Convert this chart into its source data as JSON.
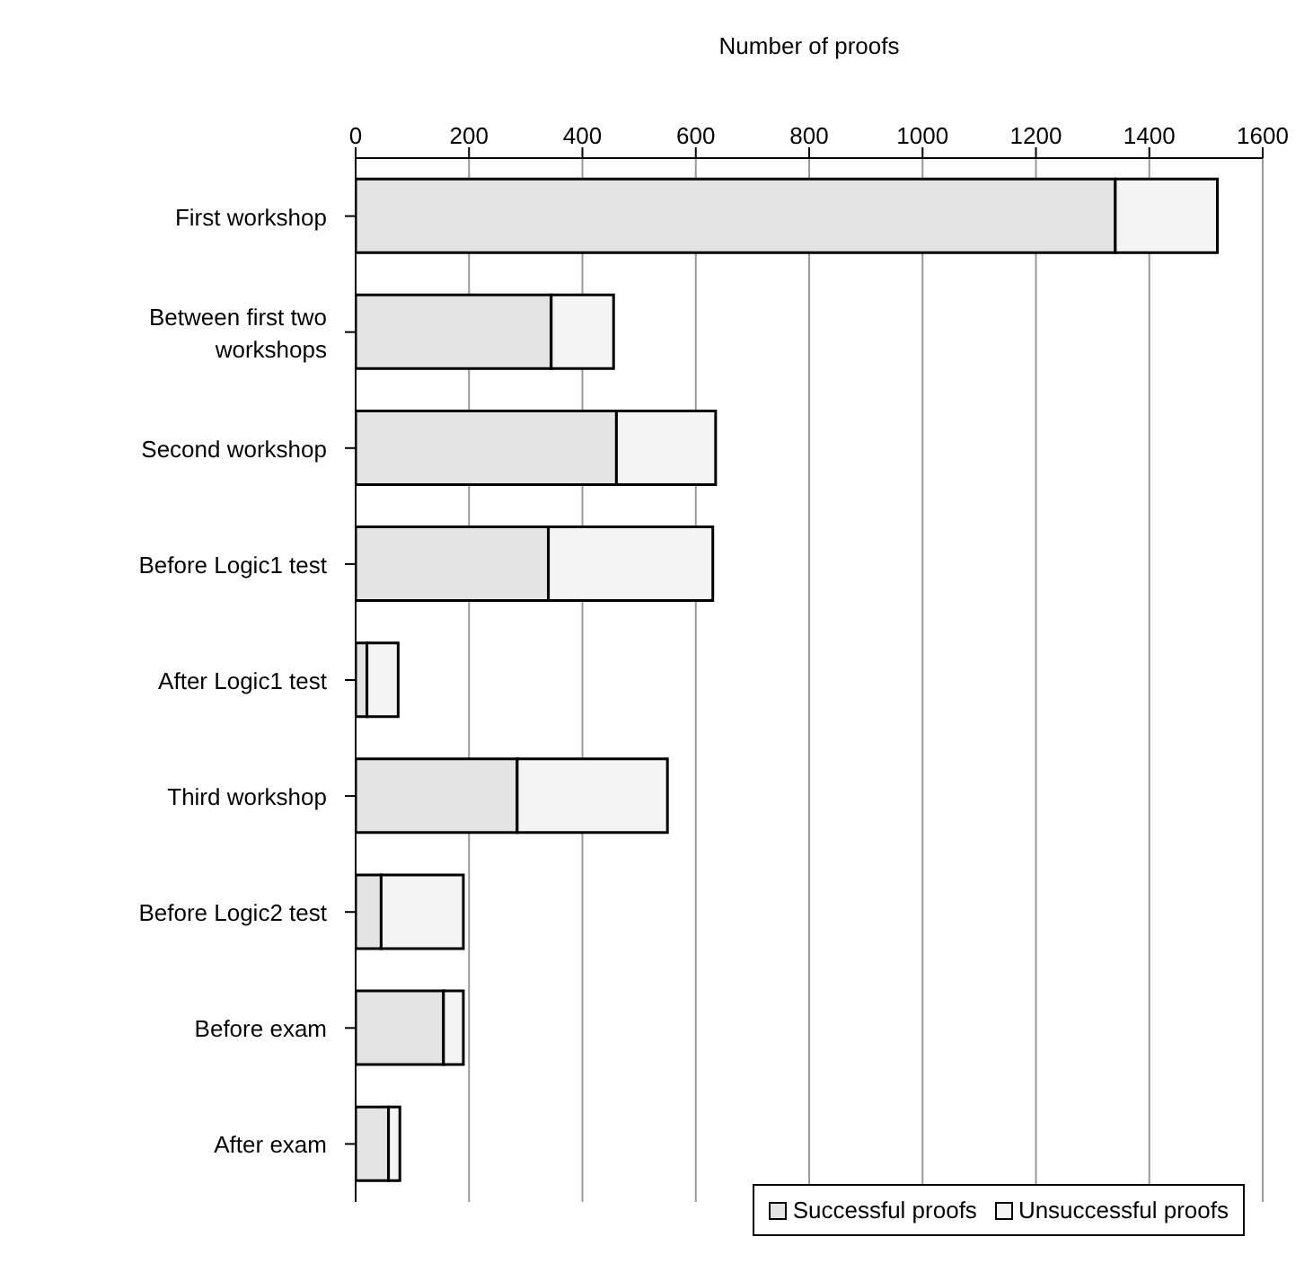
{
  "chart_data": {
    "type": "bar",
    "orientation": "horizontal",
    "stacked": true,
    "xlabel": "Number of proofs",
    "categories": [
      "First workshop",
      "Between first two workshops",
      "Second workshop",
      "Before Logic1 test",
      "After Logic1 test",
      "Third workshop",
      "Before Logic2 test",
      "Before exam",
      "After exam"
    ],
    "series": [
      {
        "name": "Successful proofs",
        "color": "#e4e4e4",
        "values": [
          1340,
          345,
          460,
          340,
          20,
          285,
          45,
          155,
          58
        ]
      },
      {
        "name": "Unsuccessful proofs",
        "color": "#f4f4f4",
        "values": [
          180,
          110,
          175,
          290,
          55,
          265,
          145,
          35,
          20
        ]
      }
    ],
    "xlim": [
      0,
      1600
    ],
    "xticks": [
      0,
      200,
      400,
      600,
      800,
      1000,
      1200,
      1400,
      1600
    ],
    "grid": "x",
    "legend": "bottom right"
  }
}
